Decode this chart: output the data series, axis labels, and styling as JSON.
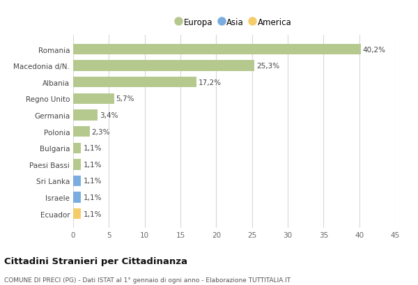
{
  "categories": [
    "Romania",
    "Macedonia d/N.",
    "Albania",
    "Regno Unito",
    "Germania",
    "Polonia",
    "Bulgaria",
    "Paesi Bassi",
    "Sri Lanka",
    "Israele",
    "Ecuador"
  ],
  "values": [
    40.2,
    25.3,
    17.2,
    5.7,
    3.4,
    2.3,
    1.1,
    1.1,
    1.1,
    1.1,
    1.1
  ],
  "labels": [
    "40,2%",
    "25,3%",
    "17,2%",
    "5,7%",
    "3,4%",
    "2,3%",
    "1,1%",
    "1,1%",
    "1,1%",
    "1,1%",
    "1,1%"
  ],
  "colors": [
    "#b5c98e",
    "#b5c98e",
    "#b5c98e",
    "#b5c98e",
    "#b5c98e",
    "#b5c98e",
    "#b5c98e",
    "#b5c98e",
    "#7aace0",
    "#7aace0",
    "#f5cc6a"
  ],
  "legend_labels": [
    "Europa",
    "Asia",
    "America"
  ],
  "legend_colors": [
    "#b5c98e",
    "#7aace0",
    "#f5cc6a"
  ],
  "title": "Cittadini Stranieri per Cittadinanza",
  "subtitle": "COMUNE DI PRECI (PG) - Dati ISTAT al 1° gennaio di ogni anno - Elaborazione TUTTITALIA.IT",
  "xlim": [
    0,
    45
  ],
  "xticks": [
    0,
    5,
    10,
    15,
    20,
    25,
    30,
    35,
    40,
    45
  ],
  "background_color": "#ffffff",
  "grid_color": "#d8d8d8",
  "bar_height": 0.65
}
